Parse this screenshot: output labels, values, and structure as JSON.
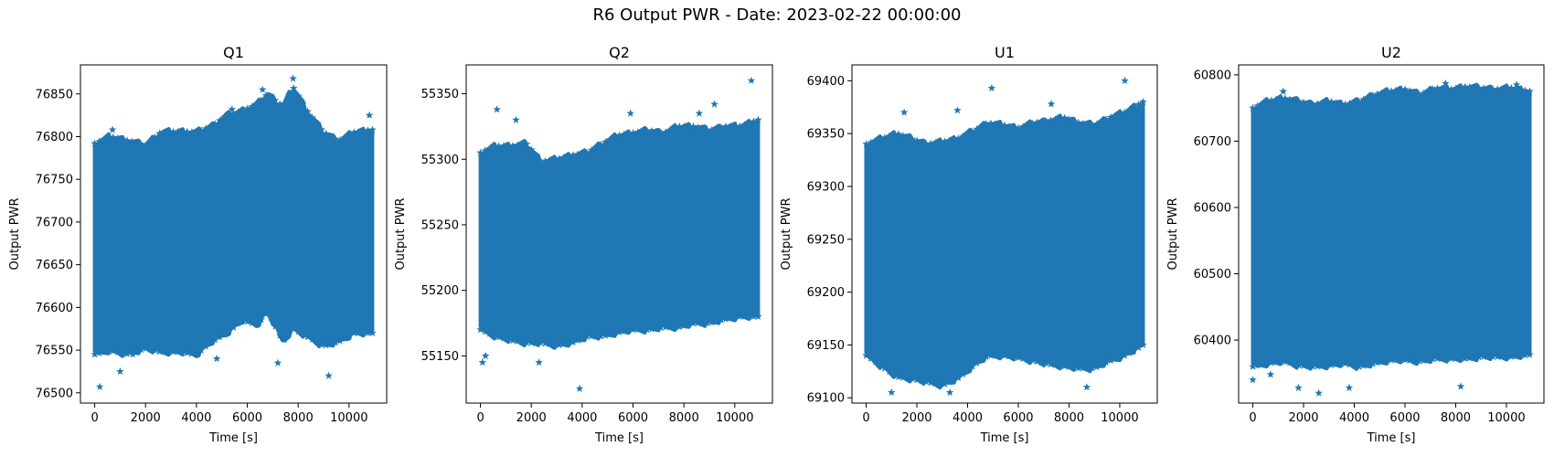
{
  "suptitle": "R6 Output PWR - Date: 2023-02-22 00:00:00",
  "marker_color": "#1f77b4",
  "marker": "star",
  "chart_data": [
    {
      "type": "scatter",
      "title": "Q1",
      "xlabel": "Time [s]",
      "ylabel": "Output PWR",
      "xlim": [
        -560,
        11480
      ],
      "ylim": [
        76488,
        76884
      ],
      "xticks": [
        0,
        2000,
        4000,
        6000,
        8000,
        10000
      ],
      "yticks": [
        76500,
        76550,
        76600,
        76650,
        76700,
        76750,
        76800,
        76850
      ],
      "x_range": [
        0,
        10920
      ],
      "envelope": {
        "x": [
          0,
          600,
          1200,
          2000,
          2600,
          3400,
          4000,
          4600,
          5200,
          5800,
          6400,
          6800,
          7400,
          7800,
          8400,
          9000,
          9600,
          10200,
          10920
        ],
        "upper": [
          76792,
          76800,
          76796,
          76790,
          76805,
          76806,
          76805,
          76812,
          76825,
          76830,
          76838,
          76850,
          76835,
          76858,
          76828,
          76805,
          76795,
          76805,
          76808
        ],
        "lower": [
          76545,
          76550,
          76545,
          76552,
          76548,
          76548,
          76545,
          76560,
          76570,
          76585,
          76580,
          76595,
          76560,
          76575,
          76565,
          76555,
          76560,
          76570,
          76570
        ]
      },
      "outliers": [
        [
          200,
          76507
        ],
        [
          1000,
          76525
        ],
        [
          1500,
          76545
        ],
        [
          4800,
          76540
        ],
        [
          7200,
          76535
        ],
        [
          9200,
          76520
        ],
        [
          7800,
          76868
        ],
        [
          6600,
          76855
        ],
        [
          10800,
          76825
        ],
        [
          700,
          76808
        ],
        [
          5400,
          76832
        ]
      ]
    },
    {
      "type": "scatter",
      "title": "Q2",
      "xlabel": "Time [s]",
      "ylabel": "Output PWR",
      "xlim": [
        -560,
        11480
      ],
      "ylim": [
        55114,
        55372
      ],
      "xticks": [
        0,
        2000,
        4000,
        6000,
        8000,
        10000
      ],
      "yticks": [
        55150,
        55200,
        55250,
        55300,
        55350
      ],
      "x_range": [
        0,
        10920
      ],
      "envelope": {
        "x": [
          0,
          600,
          1200,
          1800,
          2400,
          3000,
          3600,
          4200,
          4800,
          5400,
          6000,
          6600,
          7200,
          7800,
          8400,
          9000,
          9600,
          10200,
          10920
        ],
        "upper": [
          55305,
          55310,
          55310,
          55312,
          55298,
          55300,
          55303,
          55305,
          55312,
          55318,
          55320,
          55322,
          55320,
          55325,
          55325,
          55322,
          55325,
          55325,
          55330
        ],
        "lower": [
          55170,
          55165,
          55162,
          55160,
          55160,
          55158,
          55160,
          55165,
          55165,
          55168,
          55170,
          55170,
          55172,
          55172,
          55175,
          55175,
          55178,
          55180,
          55180
        ]
      },
      "outliers": [
        [
          80,
          55145
        ],
        [
          3900,
          55125
        ],
        [
          10650,
          55360
        ],
        [
          650,
          55338
        ],
        [
          9200,
          55342
        ],
        [
          1400,
          55330
        ],
        [
          8600,
          55335
        ],
        [
          5900,
          55335
        ],
        [
          200,
          55150
        ],
        [
          2300,
          55145
        ]
      ]
    },
    {
      "type": "scatter",
      "title": "U1",
      "xlabel": "Time [s]",
      "ylabel": "Output PWR",
      "xlim": [
        -560,
        11480
      ],
      "ylim": [
        69095,
        69415
      ],
      "xticks": [
        0,
        2000,
        4000,
        6000,
        8000,
        10000
      ],
      "yticks": [
        69100,
        69150,
        69200,
        69250,
        69300,
        69350,
        69400
      ],
      "x_range": [
        0,
        10920
      ],
      "envelope": {
        "x": [
          0,
          600,
          1200,
          1800,
          2400,
          3000,
          3600,
          4200,
          4800,
          5400,
          6000,
          6600,
          7200,
          7800,
          8400,
          9000,
          9600,
          10200,
          10920
        ],
        "upper": [
          69340,
          69345,
          69350,
          69345,
          69340,
          69342,
          69345,
          69352,
          69360,
          69358,
          69355,
          69360,
          69362,
          69365,
          69360,
          69358,
          69365,
          69370,
          69380
        ],
        "lower": [
          69140,
          69130,
          69120,
          69118,
          69115,
          69112,
          69118,
          69130,
          69140,
          69140,
          69138,
          69135,
          69132,
          69130,
          69128,
          69128,
          69135,
          69140,
          69150
        ]
      },
      "outliers": [
        [
          10200,
          69400
        ],
        [
          4950,
          69393
        ],
        [
          1000,
          69105
        ],
        [
          3300,
          69105
        ],
        [
          8700,
          69110
        ],
        [
          1500,
          69370
        ],
        [
          7300,
          69378
        ],
        [
          3600,
          69372
        ]
      ]
    },
    {
      "type": "scatter",
      "title": "U2",
      "xlabel": "Time [s]",
      "ylabel": "Output PWR",
      "xlim": [
        -560,
        11480
      ],
      "ylim": [
        60305,
        60815
      ],
      "xticks": [
        0,
        2000,
        4000,
        6000,
        8000,
        10000
      ],
      "yticks": [
        60300,
        60400,
        60500,
        60600,
        60700,
        60800
      ],
      "x_range": [
        0,
        10920
      ],
      "envelope": {
        "x": [
          0,
          600,
          1200,
          1800,
          2400,
          3000,
          3600,
          4200,
          4800,
          5400,
          6000,
          6600,
          7200,
          7800,
          8400,
          9000,
          9600,
          10200,
          10920
        ],
        "upper": [
          60750,
          60760,
          60765,
          60760,
          60755,
          60760,
          60755,
          60760,
          60770,
          60775,
          60778,
          60770,
          60780,
          60778,
          60782,
          60780,
          60778,
          60780,
          60775
        ],
        "lower": [
          60360,
          60365,
          60368,
          60362,
          60360,
          60362,
          60365,
          60360,
          60365,
          60370,
          60370,
          60368,
          60372,
          60372,
          60372,
          60375,
          60375,
          60375,
          60378
        ]
      },
      "outliers": [
        [
          0,
          60340
        ],
        [
          1800,
          60328
        ],
        [
          2600,
          60320
        ],
        [
          3800,
          60328
        ],
        [
          8200,
          60330
        ],
        [
          700,
          60348
        ],
        [
          7600,
          60787
        ],
        [
          10400,
          60785
        ],
        [
          1200,
          60775
        ]
      ]
    }
  ]
}
